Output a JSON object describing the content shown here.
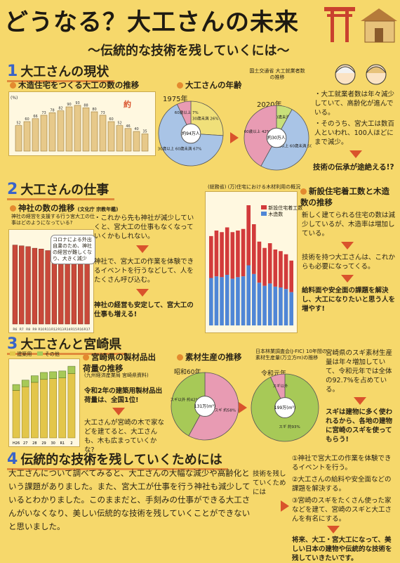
{
  "title": "どうなる？大工さんの未来",
  "subtitle": "〜伝統的な技術を残していくには〜",
  "sec1": {
    "num": "1",
    "head": "大工さんの現状",
    "chart_title": "木造住宅をつくる大工の数の推移",
    "annot": "約",
    "chart_data": {
      "type": "bar",
      "categories": [
        "",
        "",
        "",
        "",
        "",
        "",
        "",
        "",
        "",
        "",
        "",
        "",
        "",
        "",
        "",
        ""
      ],
      "values": [
        52,
        60,
        66,
        73,
        78,
        82,
        90,
        93,
        88,
        80,
        73,
        60,
        52,
        46,
        40,
        35
      ],
      "ylabel": "(%)",
      "value_labels": [
        "52",
        "60",
        "66",
        "73",
        "78",
        "82",
        "90",
        "93",
        "88",
        "80",
        "73",
        "60",
        "52",
        "46",
        "40",
        "35"
      ]
    },
    "age_title": "大工さんの年齢",
    "age_source": "国土交通省 大工就業者数の推移",
    "pie1975": {
      "year": "1975年",
      "center": "約94万人",
      "labels": [
        "30歳未満 26%",
        "30歳以上 60歳未満 67%",
        "60歳以上 7%"
      ]
    },
    "pie2020": {
      "year": "2020年",
      "center": "約30万人",
      "labels": [
        "30歳未満",
        "30歳以上 60歳未満 50%",
        "60歳以上 42%"
      ]
    },
    "notes": [
      "・大工就業者数は年々減少していて、高齢化が進んでいる。",
      "・そのうち、宮大工は数百人といわれ、100人ほどにまで減少。"
    ],
    "conclusion": "技術の伝承が途絶える!?"
  },
  "sec2": {
    "num": "2",
    "head": "大工さんの仕事",
    "chart_title": "神社の数の推移",
    "chart_source": "(文化庁 宗教年鑑)",
    "chart_desc": "神社の経営を支援する行う宮大工の仕事はどのようになっている?",
    "balloon": "コロナによる外出自粛のため、神社の経営が難しくなり、大きく減少",
    "chart_data": {
      "type": "bar",
      "categories": [
        "R6",
        "R7",
        "R8",
        "R9",
        "R10",
        "R11",
        "R12",
        "R13",
        "R14",
        "R15",
        "R16",
        "R17"
      ],
      "values": [
        200,
        198,
        196,
        192,
        190,
        186,
        182,
        178,
        175,
        172,
        170,
        168
      ]
    },
    "notes": [
      "・これから先も神社が減少していくと、宮大工の仕事もなくなっていくかもしれない。",
      "神社で、宮大工の作業を体験できるイベントを行うなどして、人をたくさん呼び込む。",
      "神社の経営も安定して、宮大工の仕事も増える!"
    ],
    "chart2_title": "新設住宅着工数と木造数の推移",
    "chart2_source": "(総務省) (万)住宅における木材利用の概況",
    "legend": [
      "新設住宅着工数",
      "木造数"
    ],
    "chart2_data": {
      "type": "bar",
      "categories": [
        "",
        "",
        "",
        "",
        "",
        "",
        "",
        "",
        "",
        "",
        "",
        "",
        "",
        "",
        "",
        ""
      ],
      "series": [
        {
          "name": "新設住宅着工数",
          "values": [
            113,
            120,
            118,
            124,
            118,
            120,
            122,
            152,
            128,
            106,
            98,
            104,
            96,
            94,
            90,
            82
          ]
        },
        {
          "name": "木造数",
          "values": [
            60,
            62,
            61,
            64,
            59,
            61,
            62,
            76,
            65,
            54,
            50,
            53,
            49,
            48,
            46,
            42
          ]
        }
      ]
    },
    "notes2": [
      "新しく建てられる住宅の数は減少しているが、木造率は増加している。",
      "技術を持つ大工さんは、これからも必要になってくる。",
      "給料面や安全面の課題を解決し、大工になりたいと思う人を増やす!"
    ]
  },
  "sec3": {
    "num": "3",
    "head": "大工さんと宮崎県",
    "legend": [
      "建築用",
      "その他"
    ],
    "chart_data": {
      "type": "bar",
      "categories": [
        "H26",
        "27",
        "28",
        "29",
        "30",
        "R1",
        "2"
      ],
      "series": [
        {
          "name": "建築用",
          "values": [
            650,
            700,
            760,
            800,
            810,
            820,
            880
          ]
        },
        {
          "name": "その他",
          "values": [
            80,
            90,
            90,
            95,
            95,
            95,
            100
          ]
        }
      ]
    },
    "prod_title": "宮崎県の製材品出荷量の推移",
    "prod_source": "(九州経済産業局 宮崎県資料)",
    "prod_notes": [
      "令和2年の建築用製材品出荷量は、全国1位!",
      "大工さんが宮崎の木で家などを建てると、大工さんも、木も広まっていくかな?"
    ],
    "mat_title": "素材生産の推移",
    "mat_source": "日本林業調査会(J-FIC) 10年間の素材生産量(万立方m)の推移",
    "pie1": {
      "year": "昭和60年",
      "center": "131万(m³)",
      "labels": [
        "スギ 約58%",
        "スギ以外 約42%"
      ]
    },
    "pie2": {
      "year": "令和元年",
      "center": "199万(m³)",
      "labels": [
        "スギ 約93%",
        "スギ以外"
      ]
    },
    "notes": [
      "宮崎県のスギ素材生産量は年々増加していて、令和元年では全体の92.7%を占めている。",
      "スギは建物に多く使われるから、各地の建物に宮崎のスギを使ってもらう!"
    ]
  },
  "sec4": {
    "num": "4",
    "head": "伝統的な技術を残していくためには",
    "body": "大工さんについて調べてみると、大工さんの大幅な減少や高齢化という課題がありました。また、宮大工が仕事を行う神社も減少しているとわかりました。このままだと、手刻みの仕事ができる大工さんがいなくなり、美しい伝統的な技術を残していくことができないと思いました。",
    "mid": "技術を残していくためには",
    "list": [
      "①神社で宮大工の作業を体験できるイベントを行う。",
      "②大工さんの給料や安全面などの課題を解決する。",
      "③宮崎のスギをたくさん使った家などを建て、宮崎のスギと大工さんを有名にする。"
    ],
    "final": "将来、大工・宮大工になって、美しい日本の建物や伝統的な技術を残していきたいです。"
  },
  "colors": {
    "bg": "#f6d86b",
    "orange": "#e38a2f",
    "red": "#d23b3b",
    "blue": "#4f86d6",
    "green": "#a7c957",
    "pink": "#e77a9a"
  }
}
